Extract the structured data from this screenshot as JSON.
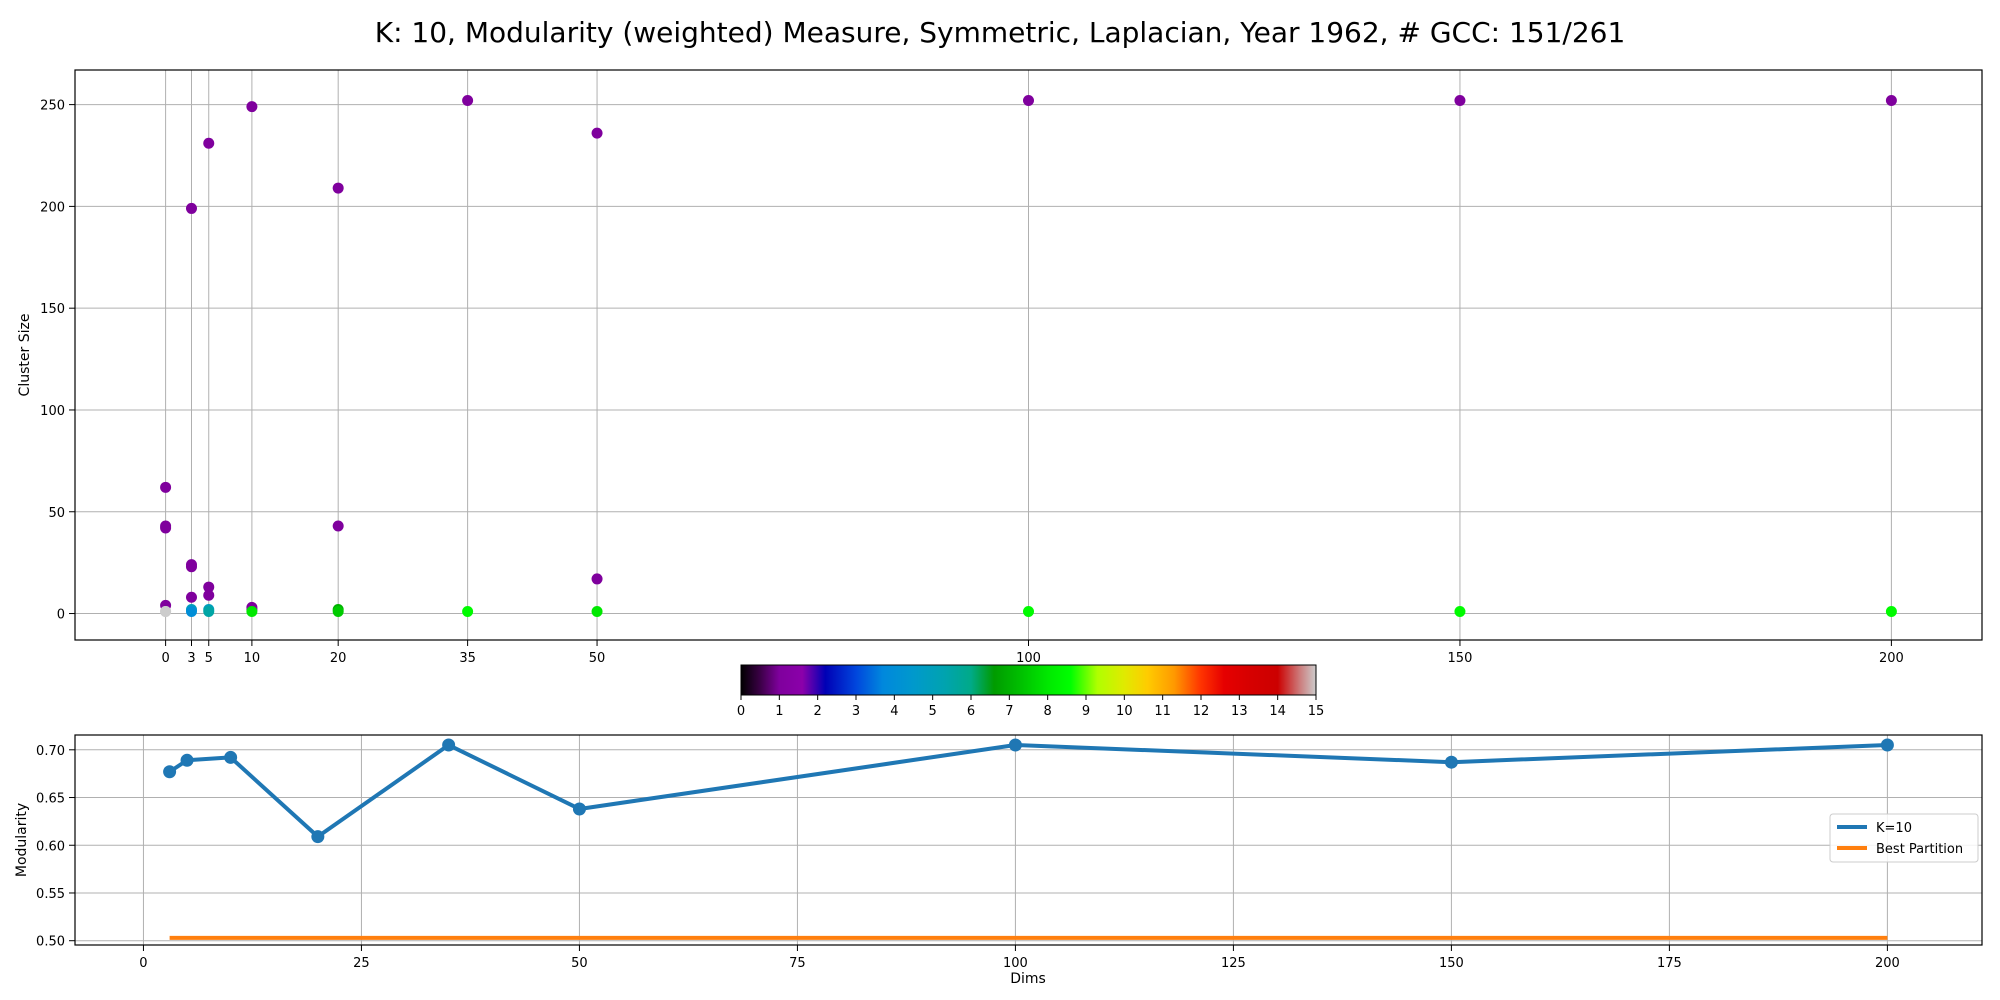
{
  "title": "K: 10, Modularity (weighted) Measure, Symmetric, Laplacian, Year 1962, # GCC: 151/261",
  "chart_data": [
    {
      "type": "scatter",
      "name": "cluster-sizes",
      "xlabel": "",
      "ylabel": "Cluster Size",
      "x_ticks": [
        0,
        3,
        5,
        10,
        20,
        35,
        50,
        100,
        150,
        200
      ],
      "y_ticks": [
        0,
        50,
        100,
        150,
        200,
        250
      ],
      "xlim": [
        -10.5,
        210.5
      ],
      "ylim": [
        -13,
        267
      ],
      "grid": true,
      "color_scale": "nipy_spectral",
      "columns": [
        {
          "x": 0,
          "points": [
            {
              "size": 62,
              "label": 1
            },
            {
              "size": 43,
              "label": 1
            },
            {
              "size": 42,
              "label": 1
            },
            {
              "size": 4,
              "label": 1
            },
            {
              "size": 1,
              "label": 15
            },
            {
              "size": 1,
              "label": 15
            }
          ]
        },
        {
          "x": 3,
          "points": [
            {
              "size": 199,
              "label": 1
            },
            {
              "size": 24,
              "label": 1
            },
            {
              "size": 23,
              "label": 1
            },
            {
              "size": 8,
              "label": 1
            },
            {
              "size": 2,
              "label": 5
            },
            {
              "size": 1,
              "label": 4
            }
          ]
        },
        {
          "x": 5,
          "points": [
            {
              "size": 231,
              "label": 1
            },
            {
              "size": 13,
              "label": 1
            },
            {
              "size": 9,
              "label": 1
            },
            {
              "size": 2,
              "label": 5
            },
            {
              "size": 1,
              "label": 5.5
            }
          ]
        },
        {
          "x": 10,
          "points": [
            {
              "size": 249,
              "label": 1
            },
            {
              "size": 3,
              "label": 1
            },
            {
              "size": 2,
              "label": 1
            },
            {
              "size": 1,
              "label": 8
            }
          ]
        },
        {
          "x": 20,
          "points": [
            {
              "size": 209,
              "label": 1
            },
            {
              "size": 43,
              "label": 1
            },
            {
              "size": 2,
              "label": 7
            },
            {
              "size": 1,
              "label": 7.5
            }
          ]
        },
        {
          "x": 35,
          "points": [
            {
              "size": 252,
              "label": 1
            },
            {
              "size": 1,
              "label": 8.5
            }
          ]
        },
        {
          "x": 50,
          "points": [
            {
              "size": 236,
              "label": 1
            },
            {
              "size": 17,
              "label": 1
            },
            {
              "size": 1,
              "label": 8
            }
          ]
        },
        {
          "x": 100,
          "points": [
            {
              "size": 252,
              "label": 1
            },
            {
              "size": 1,
              "label": 8.5
            }
          ]
        },
        {
          "x": 150,
          "points": [
            {
              "size": 252,
              "label": 1
            },
            {
              "size": 1,
              "label": 8.5
            }
          ]
        },
        {
          "x": 200,
          "points": [
            {
              "size": 252,
              "label": 1
            },
            {
              "size": 1,
              "label": 8.5
            }
          ]
        }
      ]
    },
    {
      "type": "colorbar",
      "name": "label-colorbar",
      "range": [
        0,
        15
      ],
      "ticks": [
        0,
        1,
        2,
        3,
        4,
        5,
        6,
        7,
        8,
        9,
        10,
        11,
        12,
        13,
        14,
        15
      ],
      "stops": [
        {
          "v": 0,
          "c": "#000000"
        },
        {
          "v": 0.5,
          "c": "#3b0046"
        },
        {
          "v": 1,
          "c": "#7f009d"
        },
        {
          "v": 1.6,
          "c": "#8b00aa"
        },
        {
          "v": 2.2,
          "c": "#0000b5"
        },
        {
          "v": 3,
          "c": "#0046dd"
        },
        {
          "v": 3.7,
          "c": "#0088dd"
        },
        {
          "v": 4.5,
          "c": "#0099cc"
        },
        {
          "v": 5.3,
          "c": "#00a3b0"
        },
        {
          "v": 6,
          "c": "#00aa88"
        },
        {
          "v": 6.6,
          "c": "#009b00"
        },
        {
          "v": 7.3,
          "c": "#00c000"
        },
        {
          "v": 8,
          "c": "#00e800"
        },
        {
          "v": 8.6,
          "c": "#00ff00"
        },
        {
          "v": 9.3,
          "c": "#b0ff00"
        },
        {
          "v": 10,
          "c": "#e0ea00"
        },
        {
          "v": 10.6,
          "c": "#ffcc00"
        },
        {
          "v": 11.3,
          "c": "#ff9900"
        },
        {
          "v": 12,
          "c": "#ff3300"
        },
        {
          "v": 12.6,
          "c": "#e60000"
        },
        {
          "v": 13.3,
          "c": "#d60000"
        },
        {
          "v": 14,
          "c": "#cc0000"
        },
        {
          "v": 14.6,
          "c": "#cc8080"
        },
        {
          "v": 15,
          "c": "#cccccc"
        }
      ]
    },
    {
      "type": "line",
      "name": "modularity",
      "xlabel": "Dims",
      "ylabel": "Modularity",
      "x_ticks": [
        0,
        25,
        50,
        75,
        100,
        125,
        150,
        175,
        200
      ],
      "y_ticks": [
        0.5,
        0.55,
        0.6,
        0.65,
        0.7
      ],
      "y_tick_labels": [
        "0.50",
        "0.55",
        "0.60",
        "0.65",
        "0.70"
      ],
      "xlim": [
        -7.85,
        210.85
      ],
      "ylim": [
        0.4955,
        0.7155
      ],
      "grid": true,
      "legend_position": "center-right",
      "series": [
        {
          "name": "K=10",
          "color": "#1f77b4",
          "markers": true,
          "x": [
            3,
            5,
            10,
            20,
            35,
            50,
            100,
            150,
            200
          ],
          "y": [
            0.677,
            0.689,
            0.692,
            0.609,
            0.705,
            0.638,
            0.705,
            0.687,
            0.705
          ]
        },
        {
          "name": "Best Partition",
          "color": "#ff7f0e",
          "markers": false,
          "x": [
            3,
            200
          ],
          "y": [
            0.503,
            0.503
          ]
        }
      ]
    }
  ]
}
